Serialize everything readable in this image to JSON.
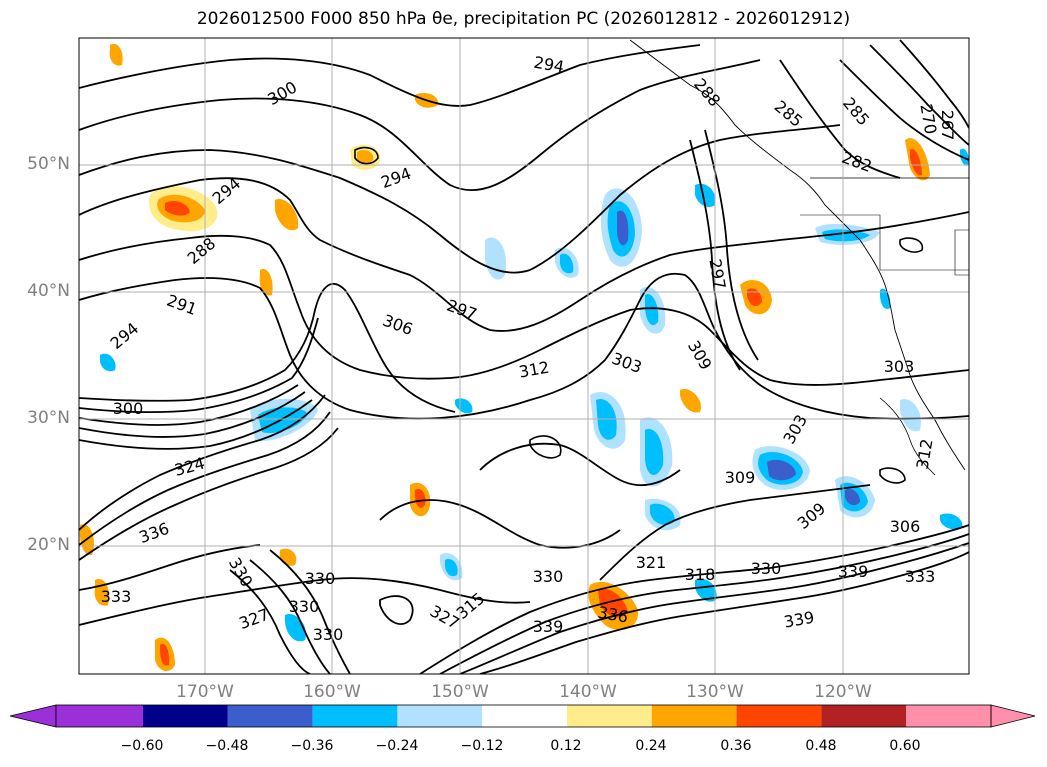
{
  "title": "2026012500 F000 850 hPa θe, precipitation PC (2026012812 - 2026012912)",
  "map": {
    "lat_labels": [
      "50°N",
      "40°N",
      "30°N",
      "20°N"
    ],
    "lon_labels": [
      "170°W",
      "160°W",
      "150°W",
      "140°W",
      "130°W",
      "120°W"
    ],
    "contour_labels": [
      "294",
      "300",
      "294",
      "288",
      "285",
      "282",
      "270",
      "267",
      "285",
      "294",
      "288",
      "291",
      "294",
      "306",
      "297",
      "297",
      "309",
      "312",
      "303",
      "303",
      "300",
      "324",
      "303",
      "309",
      "309",
      "306",
      "312",
      "336",
      "330",
      "330",
      "330",
      "339",
      "333",
      "327",
      "330",
      "315",
      "321",
      "318",
      "330",
      "333",
      "339",
      "336",
      "339",
      "330",
      "327"
    ]
  },
  "colorbar": {
    "ticks": [
      "−0.60",
      "−0.48",
      "−0.36",
      "−0.24",
      "−0.12",
      "0.12",
      "0.24",
      "0.36",
      "0.48",
      "0.60"
    ],
    "colors": [
      "#9b30d9",
      "#00008b",
      "#3a5fcd",
      "#00bfff",
      "#b0e2ff",
      "#ffffff",
      "#ffec8b",
      "#ffa500",
      "#ff4500",
      "#b22222",
      "#ff8fab"
    ]
  }
}
